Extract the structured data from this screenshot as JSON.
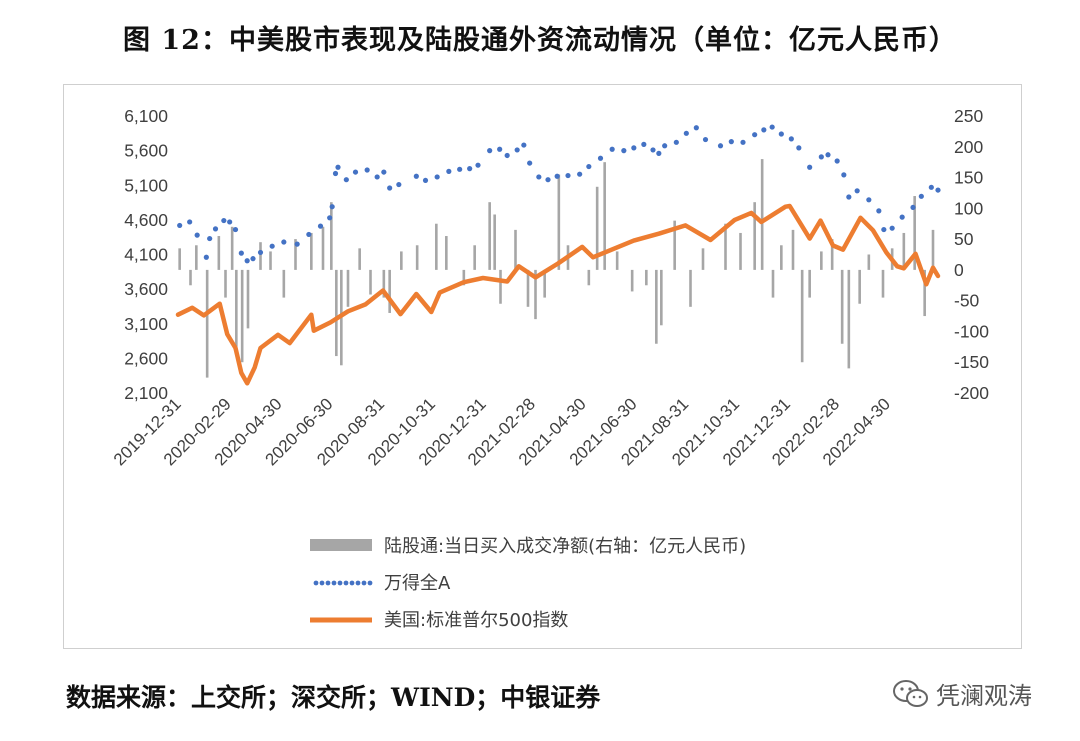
{
  "title": "图 12：中美股市表现及陆股通外资流动情况（单位：亿元人民币）",
  "source": "数据来源：上交所；深交所；WIND；中银证券",
  "watermark": "凭澜观涛",
  "colors": {
    "bar": "#a6a6a6",
    "dots": "#4472c4",
    "line": "#ed7d31"
  },
  "chart_data": {
    "type": "line",
    "title": "",
    "x_range": [
      "2019-12-31",
      "2022-06-30"
    ],
    "x_tick_labels": [
      "2019-12-31",
      "2020-02-29",
      "2020-04-30",
      "2020-06-30",
      "2020-08-31",
      "2020-10-31",
      "2020-12-31",
      "2021-02-28",
      "2021-04-30",
      "2021-06-30",
      "2021-08-31",
      "2021-10-31",
      "2021-12-31",
      "2022-02-28",
      "2022-04-30"
    ],
    "left_axis": {
      "min": 2100,
      "max": 6100,
      "step": 500,
      "tick_labels": [
        "6,100",
        "5,600",
        "5,100",
        "4,600",
        "4,100",
        "3,600",
        "3,100",
        "2,600",
        "2,100"
      ]
    },
    "right_axis": {
      "min": -200,
      "max": 250,
      "step": 50,
      "tick_labels": [
        "250",
        "200",
        "150",
        "100",
        "50",
        "0",
        "-50",
        "-100",
        "-150",
        "-200"
      ]
    },
    "legend_position": "bottom",
    "series": [
      {
        "name": "陆股通:当日买入成交净额(右轴：亿元人民币)",
        "style": "bar",
        "axis": "right",
        "points": [
          [
            "2020-01-02",
            35
          ],
          [
            "2020-01-15",
            -25
          ],
          [
            "2020-01-22",
            40
          ],
          [
            "2020-02-04",
            -175
          ],
          [
            "2020-02-18",
            55
          ],
          [
            "2020-02-26",
            -45
          ],
          [
            "2020-03-05",
            70
          ],
          [
            "2020-03-10",
            -125
          ],
          [
            "2020-03-17",
            -150
          ],
          [
            "2020-03-24",
            -95
          ],
          [
            "2020-04-08",
            45
          ],
          [
            "2020-04-20",
            30
          ],
          [
            "2020-05-06",
            -45
          ],
          [
            "2020-05-20",
            50
          ],
          [
            "2020-06-08",
            60
          ],
          [
            "2020-06-22",
            70
          ],
          [
            "2020-07-02",
            110
          ],
          [
            "2020-07-08",
            -140
          ],
          [
            "2020-07-14",
            -155
          ],
          [
            "2020-07-22",
            -60
          ],
          [
            "2020-08-05",
            35
          ],
          [
            "2020-08-18",
            -40
          ],
          [
            "2020-09-03",
            -45
          ],
          [
            "2020-09-10",
            -70
          ],
          [
            "2020-09-24",
            30
          ],
          [
            "2020-10-13",
            40
          ],
          [
            "2020-11-05",
            75
          ],
          [
            "2020-11-17",
            55
          ],
          [
            "2020-12-08",
            -25
          ],
          [
            "2020-12-21",
            40
          ],
          [
            "2021-01-08",
            110
          ],
          [
            "2021-01-14",
            90
          ],
          [
            "2021-01-21",
            -55
          ],
          [
            "2021-02-08",
            65
          ],
          [
            "2021-02-23",
            -60
          ],
          [
            "2021-03-04",
            -80
          ],
          [
            "2021-03-15",
            -45
          ],
          [
            "2021-04-01",
            155
          ],
          [
            "2021-04-12",
            40
          ],
          [
            "2021-05-07",
            -25
          ],
          [
            "2021-05-17",
            135
          ],
          [
            "2021-05-26",
            175
          ],
          [
            "2021-06-10",
            30
          ],
          [
            "2021-06-28",
            -35
          ],
          [
            "2021-07-15",
            -25
          ],
          [
            "2021-07-27",
            -120
          ],
          [
            "2021-08-02",
            -90
          ],
          [
            "2021-08-18",
            80
          ],
          [
            "2021-09-06",
            -60
          ],
          [
            "2021-09-21",
            35
          ],
          [
            "2021-10-18",
            75
          ],
          [
            "2021-11-05",
            60
          ],
          [
            "2021-11-22",
            110
          ],
          [
            "2021-12-01",
            180
          ],
          [
            "2021-12-14",
            -45
          ],
          [
            "2021-12-24",
            40
          ],
          [
            "2022-01-07",
            65
          ],
          [
            "2022-01-18",
            -150
          ],
          [
            "2022-01-27",
            -45
          ],
          [
            "2022-02-10",
            30
          ],
          [
            "2022-02-23",
            50
          ],
          [
            "2022-03-07",
            -120
          ],
          [
            "2022-03-15",
            -160
          ],
          [
            "2022-03-28",
            -55
          ],
          [
            "2022-04-08",
            25
          ],
          [
            "2022-04-25",
            -45
          ],
          [
            "2022-05-06",
            35
          ],
          [
            "2022-05-20",
            60
          ],
          [
            "2022-06-02",
            120
          ],
          [
            "2022-06-14",
            -75
          ],
          [
            "2022-06-24",
            65
          ]
        ]
      },
      {
        "name": "万得全A",
        "style": "dots",
        "axis": "left",
        "points": [
          [
            "2020-01-02",
            4520
          ],
          [
            "2020-01-14",
            4570
          ],
          [
            "2020-01-23",
            4380
          ],
          [
            "2020-02-03",
            4060
          ],
          [
            "2020-02-07",
            4330
          ],
          [
            "2020-02-14",
            4470
          ],
          [
            "2020-02-24",
            4590
          ],
          [
            "2020-03-02",
            4570
          ],
          [
            "2020-03-09",
            4460
          ],
          [
            "2020-03-16",
            4120
          ],
          [
            "2020-03-23",
            4010
          ],
          [
            "2020-03-30",
            4040
          ],
          [
            "2020-04-08",
            4130
          ],
          [
            "2020-04-22",
            4220
          ],
          [
            "2020-05-06",
            4280
          ],
          [
            "2020-05-22",
            4250
          ],
          [
            "2020-06-05",
            4390
          ],
          [
            "2020-06-19",
            4510
          ],
          [
            "2020-06-30",
            4630
          ],
          [
            "2020-07-03",
            4790
          ],
          [
            "2020-07-07",
            5270
          ],
          [
            "2020-07-10",
            5360
          ],
          [
            "2020-07-20",
            5180
          ],
          [
            "2020-07-31",
            5290
          ],
          [
            "2020-08-14",
            5320
          ],
          [
            "2020-08-26",
            5220
          ],
          [
            "2020-09-03",
            5290
          ],
          [
            "2020-09-10",
            5060
          ],
          [
            "2020-09-21",
            5110
          ],
          [
            "2020-10-12",
            5230
          ],
          [
            "2020-10-23",
            5170
          ],
          [
            "2020-11-06",
            5220
          ],
          [
            "2020-11-20",
            5300
          ],
          [
            "2020-12-03",
            5330
          ],
          [
            "2020-12-15",
            5340
          ],
          [
            "2020-12-25",
            5390
          ],
          [
            "2021-01-08",
            5600
          ],
          [
            "2021-01-20",
            5620
          ],
          [
            "2021-01-29",
            5530
          ],
          [
            "2021-02-10",
            5610
          ],
          [
            "2021-02-18",
            5680
          ],
          [
            "2021-02-25",
            5420
          ],
          [
            "2021-03-08",
            5220
          ],
          [
            "2021-03-19",
            5180
          ],
          [
            "2021-03-30",
            5230
          ],
          [
            "2021-04-12",
            5240
          ],
          [
            "2021-04-26",
            5260
          ],
          [
            "2021-05-07",
            5370
          ],
          [
            "2021-05-21",
            5490
          ],
          [
            "2021-06-04",
            5620
          ],
          [
            "2021-06-18",
            5600
          ],
          [
            "2021-06-30",
            5640
          ],
          [
            "2021-07-12",
            5690
          ],
          [
            "2021-07-23",
            5610
          ],
          [
            "2021-07-30",
            5560
          ],
          [
            "2021-08-06",
            5670
          ],
          [
            "2021-08-20",
            5720
          ],
          [
            "2021-09-01",
            5850
          ],
          [
            "2021-09-13",
            5930
          ],
          [
            "2021-09-24",
            5760
          ],
          [
            "2021-10-12",
            5670
          ],
          [
            "2021-10-25",
            5730
          ],
          [
            "2021-11-08",
            5720
          ],
          [
            "2021-11-22",
            5830
          ],
          [
            "2021-12-03",
            5900
          ],
          [
            "2021-12-13",
            5940
          ],
          [
            "2021-12-24",
            5840
          ],
          [
            "2022-01-05",
            5770
          ],
          [
            "2022-01-14",
            5640
          ],
          [
            "2022-01-27",
            5360
          ],
          [
            "2022-02-10",
            5510
          ],
          [
            "2022-02-18",
            5540
          ],
          [
            "2022-03-01",
            5450
          ],
          [
            "2022-03-09",
            5250
          ],
          [
            "2022-03-15",
            4930
          ],
          [
            "2022-03-25",
            5020
          ],
          [
            "2022-04-08",
            4890
          ],
          [
            "2022-04-20",
            4730
          ],
          [
            "2022-04-26",
            4460
          ],
          [
            "2022-05-06",
            4480
          ],
          [
            "2022-05-18",
            4640
          ],
          [
            "2022-05-31",
            4780
          ],
          [
            "2022-06-10",
            4940
          ],
          [
            "2022-06-22",
            5070
          ],
          [
            "2022-06-30",
            5030
          ]
        ]
      },
      {
        "name": "美国:标准普尔500指数",
        "style": "line",
        "axis": "left",
        "points": [
          [
            "2019-12-31",
            3230
          ],
          [
            "2020-01-17",
            3330
          ],
          [
            "2020-01-31",
            3220
          ],
          [
            "2020-02-19",
            3390
          ],
          [
            "2020-02-28",
            2950
          ],
          [
            "2020-03-09",
            2750
          ],
          [
            "2020-03-16",
            2390
          ],
          [
            "2020-03-23",
            2240
          ],
          [
            "2020-04-01",
            2470
          ],
          [
            "2020-04-08",
            2750
          ],
          [
            "2020-04-29",
            2940
          ],
          [
            "2020-05-13",
            2820
          ],
          [
            "2020-06-08",
            3230
          ],
          [
            "2020-06-11",
            3000
          ],
          [
            "2020-07-01",
            3120
          ],
          [
            "2020-07-22",
            3280
          ],
          [
            "2020-08-12",
            3380
          ],
          [
            "2020-09-02",
            3580
          ],
          [
            "2020-09-23",
            3240
          ],
          [
            "2020-10-12",
            3530
          ],
          [
            "2020-10-30",
            3270
          ],
          [
            "2020-11-09",
            3550
          ],
          [
            "2020-12-08",
            3700
          ],
          [
            "2020-12-31",
            3760
          ],
          [
            "2021-01-29",
            3710
          ],
          [
            "2021-02-12",
            3930
          ],
          [
            "2021-03-04",
            3770
          ],
          [
            "2021-03-31",
            3970
          ],
          [
            "2021-04-29",
            4210
          ],
          [
            "2021-05-12",
            4060
          ],
          [
            "2021-06-30",
            4300
          ],
          [
            "2021-07-30",
            4400
          ],
          [
            "2021-08-31",
            4520
          ],
          [
            "2021-09-30",
            4310
          ],
          [
            "2021-10-29",
            4600
          ],
          [
            "2021-11-18",
            4700
          ],
          [
            "2021-11-30",
            4570
          ],
          [
            "2021-12-29",
            4790
          ],
          [
            "2022-01-03",
            4800
          ],
          [
            "2022-01-27",
            4330
          ],
          [
            "2022-02-09",
            4590
          ],
          [
            "2022-02-24",
            4230
          ],
          [
            "2022-03-08",
            4170
          ],
          [
            "2022-03-29",
            4630
          ],
          [
            "2022-04-13",
            4450
          ],
          [
            "2022-04-29",
            4130
          ],
          [
            "2022-05-12",
            3930
          ],
          [
            "2022-05-20",
            3900
          ],
          [
            "2022-06-03",
            4110
          ],
          [
            "2022-06-16",
            3670
          ],
          [
            "2022-06-24",
            3910
          ],
          [
            "2022-06-30",
            3790
          ]
        ]
      }
    ]
  }
}
